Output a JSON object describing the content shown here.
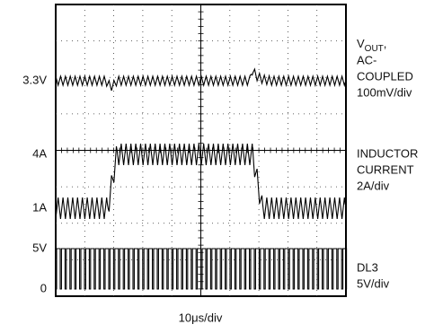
{
  "scope": {
    "left_labels": [
      "3.3V",
      "4A",
      "1A",
      "5V",
      "0"
    ],
    "vout": {
      "main": "V",
      "sub": "OUT",
      "suffix": ",",
      "lines": [
        "AC-",
        "COUPLED",
        "100mV/div"
      ]
    },
    "inductor": [
      "INDUCTOR",
      "CURRENT",
      "2A/div"
    ],
    "dl3": [
      "DL3",
      "5V/div"
    ],
    "time_scale": "10μs/div"
  }
}
